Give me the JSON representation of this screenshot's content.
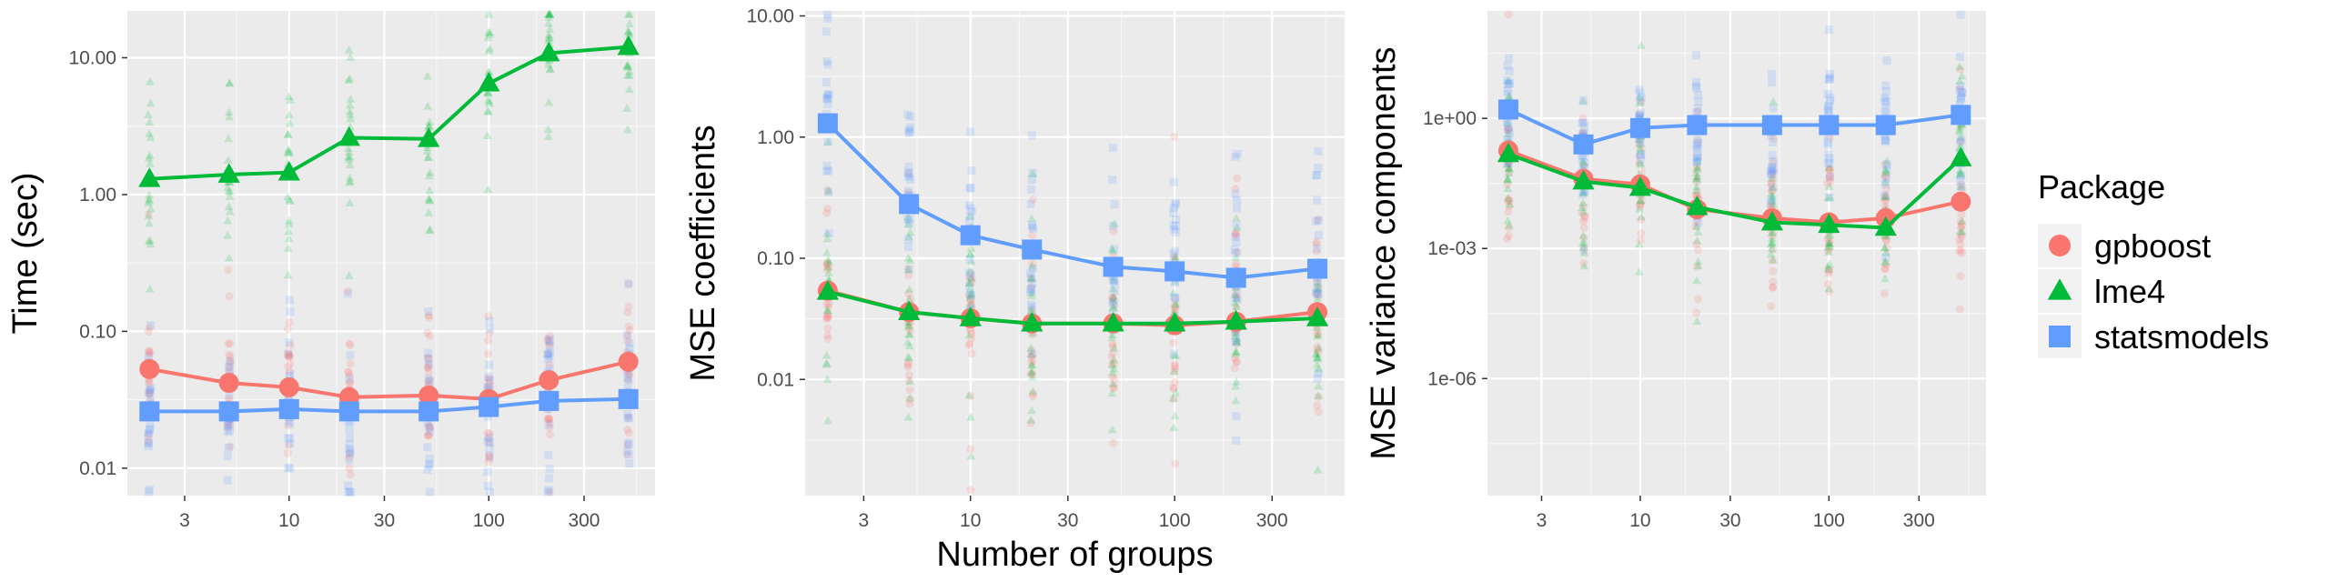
{
  "figure": {
    "xlabel": "Number of groups",
    "legend": {
      "title": "Package",
      "entries": [
        {
          "name": "gpboost",
          "color": "#F8766D",
          "shape": "circle"
        },
        {
          "name": "lme4",
          "color": "#00BA38",
          "shape": "triangle"
        },
        {
          "name": "statsmodels",
          "color": "#619CFF",
          "shape": "square"
        }
      ]
    }
  },
  "chart_data": [
    {
      "type": "line",
      "ylabel": "Time (sec)",
      "y_scale": "log10",
      "x_scale": "log10",
      "xlim": [
        1.55,
        680
      ],
      "ylim": [
        0.0063,
        22
      ],
      "x_ticks": [
        {
          "v": 3,
          "label": "3"
        },
        {
          "v": 10,
          "label": "10"
        },
        {
          "v": 30,
          "label": "30"
        },
        {
          "v": 100,
          "label": "100"
        },
        {
          "v": 300,
          "label": "300"
        }
      ],
      "y_ticks": [
        {
          "v": 0.01,
          "label": "0.01"
        },
        {
          "v": 0.1,
          "label": "0.10"
        },
        {
          "v": 1,
          "label": "1.00"
        },
        {
          "v": 10,
          "label": "10.00"
        }
      ],
      "x": [
        2,
        5,
        10,
        20,
        50,
        100,
        200,
        500
      ],
      "series": [
        {
          "name": "gpboost",
          "values": [
            0.053,
            0.042,
            0.039,
            0.033,
            0.034,
            0.032,
            0.044,
            0.06
          ]
        },
        {
          "name": "lme4",
          "values": [
            1.3,
            1.4,
            1.45,
            2.6,
            2.55,
            6.5,
            10.8,
            12.0
          ]
        },
        {
          "name": "statsmodels",
          "values": [
            0.026,
            0.026,
            0.027,
            0.026,
            0.026,
            0.028,
            0.031,
            0.032
          ]
        }
      ]
    },
    {
      "type": "line",
      "ylabel": "MSE coefficients",
      "y_scale": "log10",
      "x_scale": "log10",
      "xlim": [
        1.55,
        680
      ],
      "ylim": [
        0.0011,
        11
      ],
      "x_ticks": [
        {
          "v": 3,
          "label": "3"
        },
        {
          "v": 10,
          "label": "10"
        },
        {
          "v": 30,
          "label": "30"
        },
        {
          "v": 100,
          "label": "100"
        },
        {
          "v": 300,
          "label": "300"
        }
      ],
      "y_ticks": [
        {
          "v": 0.01,
          "label": "0.01"
        },
        {
          "v": 0.1,
          "label": "0.10"
        },
        {
          "v": 1,
          "label": "1.00"
        },
        {
          "v": 10,
          "label": "10.00"
        }
      ],
      "x": [
        2,
        5,
        10,
        20,
        50,
        100,
        200,
        500
      ],
      "series": [
        {
          "name": "gpboost",
          "values": [
            0.054,
            0.036,
            0.032,
            0.029,
            0.029,
            0.028,
            0.03,
            0.036
          ]
        },
        {
          "name": "lme4",
          "values": [
            0.053,
            0.036,
            0.032,
            0.029,
            0.029,
            0.029,
            0.03,
            0.032
          ]
        },
        {
          "name": "statsmodels",
          "values": [
            1.3,
            0.28,
            0.155,
            0.118,
            0.085,
            0.078,
            0.069,
            0.082
          ]
        }
      ]
    },
    {
      "type": "line",
      "ylabel": "MSE variance components",
      "y_scale": "log10",
      "x_scale": "log10",
      "xlim": [
        1.55,
        680
      ],
      "ylim": [
        2e-09,
        300
      ],
      "x_ticks": [
        {
          "v": 3,
          "label": "3"
        },
        {
          "v": 10,
          "label": "10"
        },
        {
          "v": 30,
          "label": "30"
        },
        {
          "v": 100,
          "label": "100"
        },
        {
          "v": 300,
          "label": "300"
        }
      ],
      "y_ticks": [
        {
          "v": 1e-06,
          "label": "1e-06"
        },
        {
          "v": 0.001,
          "label": "1e-03"
        },
        {
          "v": 1,
          "label": "1e+00"
        }
      ],
      "x": [
        2,
        5,
        10,
        20,
        50,
        100,
        200,
        500
      ],
      "series": [
        {
          "name": "gpboost",
          "values": [
            0.18,
            0.04,
            0.03,
            0.008,
            0.005,
            0.004,
            0.005,
            0.012
          ]
        },
        {
          "name": "lme4",
          "values": [
            0.15,
            0.035,
            0.025,
            0.009,
            0.004,
            0.0035,
            0.003,
            0.12
          ]
        },
        {
          "name": "statsmodels",
          "values": [
            1.6,
            0.25,
            0.6,
            0.7,
            0.7,
            0.7,
            0.7,
            1.2
          ]
        }
      ]
    }
  ]
}
